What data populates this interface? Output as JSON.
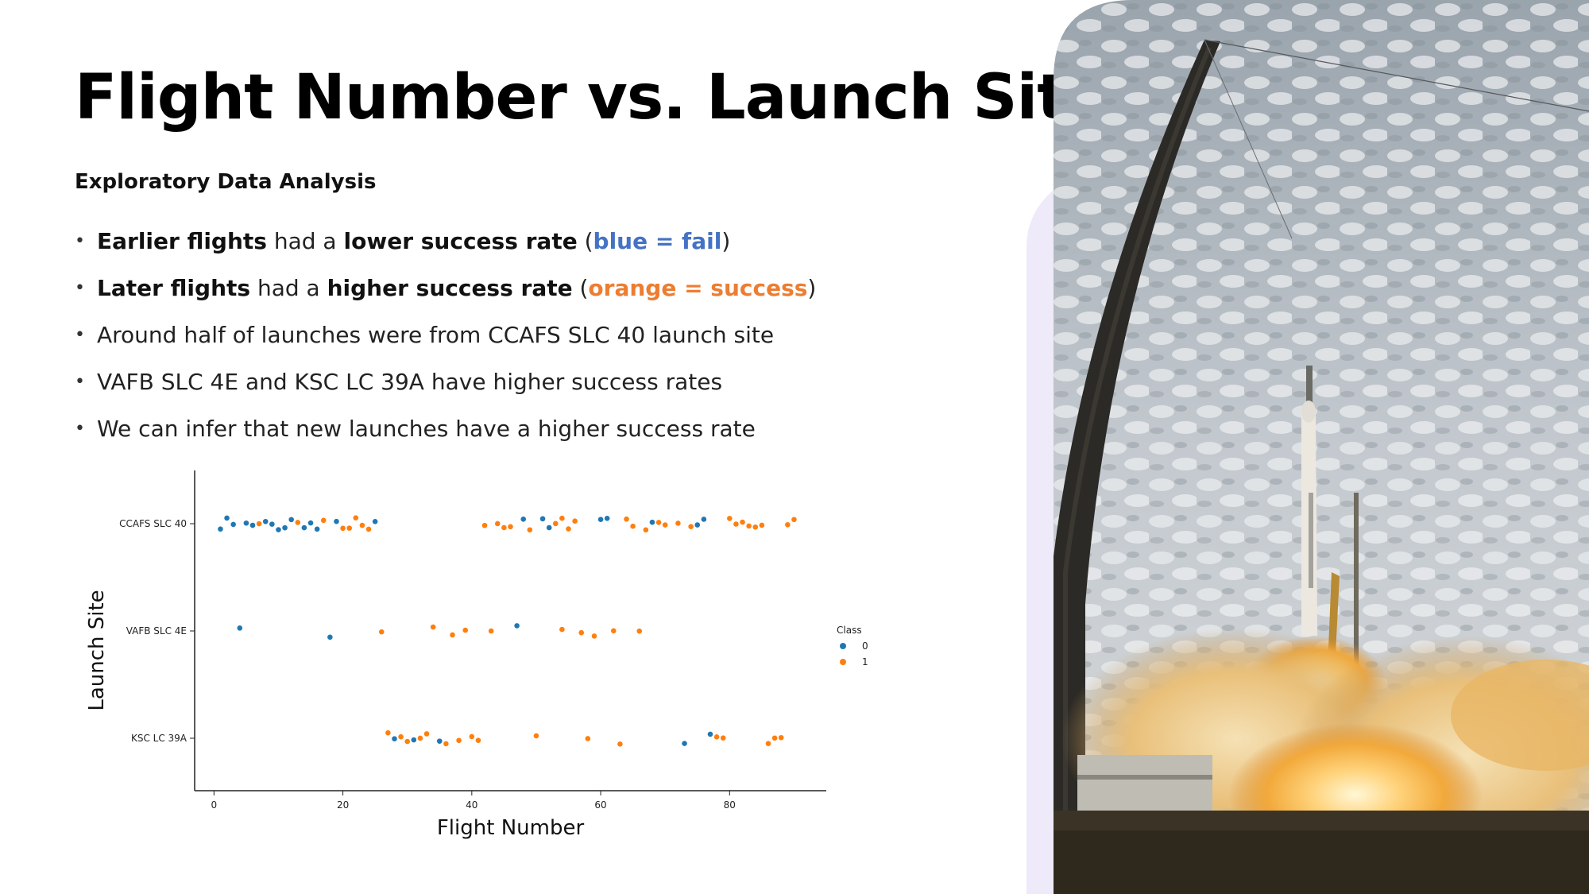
{
  "slide": {
    "title": "Flight Number vs. Launch Site",
    "subtitle": "Exploratory Data Analysis",
    "bullets": [
      {
        "parts": [
          {
            "text": "Earlier flights",
            "style": "b"
          },
          {
            "text": " had a ",
            "style": ""
          },
          {
            "text": "lower success rate",
            "style": "b"
          },
          {
            "text": " (",
            "style": ""
          },
          {
            "text": "blue = fail",
            "style": "blue"
          },
          {
            "text": ")",
            "style": ""
          }
        ]
      },
      {
        "parts": [
          {
            "text": "Later flights",
            "style": "b"
          },
          {
            "text": " had a ",
            "style": ""
          },
          {
            "text": "higher success rate",
            "style": "b"
          },
          {
            "text": " (",
            "style": ""
          },
          {
            "text": "orange = success",
            "style": "orange"
          },
          {
            "text": ")",
            "style": ""
          }
        ]
      },
      {
        "parts": [
          {
            "text": "Around half of launches were from CCAFS SLC 40 launch site",
            "style": ""
          }
        ]
      },
      {
        "parts": [
          {
            "text": "VAFB SLC 4E and KSC LC 39A have higher success rates",
            "style": ""
          }
        ]
      },
      {
        "parts": [
          {
            "text": "We can infer that new launches have a higher success rate",
            "style": ""
          }
        ]
      }
    ],
    "photo_description": "rocket-launch-photo"
  },
  "colors": {
    "fail": "#1f77b4",
    "success": "#ff7f0e",
    "blue_text": "#4472c4",
    "orange_text": "#ed7d31"
  },
  "chart_data": {
    "type": "scatter",
    "title": "",
    "xlabel": "Flight Number",
    "ylabel": "Launch Site",
    "xlim": [
      -3,
      95
    ],
    "x_ticks": [
      0,
      20,
      40,
      60,
      80
    ],
    "categories": [
      "CCAFS SLC 40",
      "VAFB SLC 4E",
      "KSC LC 39A"
    ],
    "legend": {
      "title": "Class",
      "labels": [
        "0",
        "1"
      ],
      "placement": "right"
    },
    "series": [
      {
        "name": "0",
        "points": [
          {
            "x": 1,
            "site": "CCAFS SLC 40"
          },
          {
            "x": 2,
            "site": "CCAFS SLC 40"
          },
          {
            "x": 3,
            "site": "CCAFS SLC 40"
          },
          {
            "x": 5,
            "site": "CCAFS SLC 40"
          },
          {
            "x": 6,
            "site": "CCAFS SLC 40"
          },
          {
            "x": 8,
            "site": "CCAFS SLC 40"
          },
          {
            "x": 9,
            "site": "CCAFS SLC 40"
          },
          {
            "x": 10,
            "site": "CCAFS SLC 40"
          },
          {
            "x": 11,
            "site": "CCAFS SLC 40"
          },
          {
            "x": 12,
            "site": "CCAFS SLC 40"
          },
          {
            "x": 14,
            "site": "CCAFS SLC 40"
          },
          {
            "x": 15,
            "site": "CCAFS SLC 40"
          },
          {
            "x": 16,
            "site": "CCAFS SLC 40"
          },
          {
            "x": 19,
            "site": "CCAFS SLC 40"
          },
          {
            "x": 25,
            "site": "CCAFS SLC 40"
          },
          {
            "x": 48,
            "site": "CCAFS SLC 40"
          },
          {
            "x": 51,
            "site": "CCAFS SLC 40"
          },
          {
            "x": 52,
            "site": "CCAFS SLC 40"
          },
          {
            "x": 60,
            "site": "CCAFS SLC 40"
          },
          {
            "x": 61,
            "site": "CCAFS SLC 40"
          },
          {
            "x": 68,
            "site": "CCAFS SLC 40"
          },
          {
            "x": 75,
            "site": "CCAFS SLC 40"
          },
          {
            "x": 76,
            "site": "CCAFS SLC 40"
          },
          {
            "x": 4,
            "site": "VAFB SLC 4E"
          },
          {
            "x": 18,
            "site": "VAFB SLC 4E"
          },
          {
            "x": 47,
            "site": "VAFB SLC 4E"
          },
          {
            "x": 28,
            "site": "KSC LC 39A"
          },
          {
            "x": 31,
            "site": "KSC LC 39A"
          },
          {
            "x": 35,
            "site": "KSC LC 39A"
          },
          {
            "x": 73,
            "site": "KSC LC 39A"
          },
          {
            "x": 77,
            "site": "KSC LC 39A"
          }
        ]
      },
      {
        "name": "1",
        "points": [
          {
            "x": 7,
            "site": "CCAFS SLC 40"
          },
          {
            "x": 13,
            "site": "CCAFS SLC 40"
          },
          {
            "x": 17,
            "site": "CCAFS SLC 40"
          },
          {
            "x": 20,
            "site": "CCAFS SLC 40"
          },
          {
            "x": 21,
            "site": "CCAFS SLC 40"
          },
          {
            "x": 22,
            "site": "CCAFS SLC 40"
          },
          {
            "x": 23,
            "site": "CCAFS SLC 40"
          },
          {
            "x": 24,
            "site": "CCAFS SLC 40"
          },
          {
            "x": 42,
            "site": "CCAFS SLC 40"
          },
          {
            "x": 44,
            "site": "CCAFS SLC 40"
          },
          {
            "x": 45,
            "site": "CCAFS SLC 40"
          },
          {
            "x": 46,
            "site": "CCAFS SLC 40"
          },
          {
            "x": 49,
            "site": "CCAFS SLC 40"
          },
          {
            "x": 53,
            "site": "CCAFS SLC 40"
          },
          {
            "x": 54,
            "site": "CCAFS SLC 40"
          },
          {
            "x": 55,
            "site": "CCAFS SLC 40"
          },
          {
            "x": 56,
            "site": "CCAFS SLC 40"
          },
          {
            "x": 64,
            "site": "CCAFS SLC 40"
          },
          {
            "x": 65,
            "site": "CCAFS SLC 40"
          },
          {
            "x": 67,
            "site": "CCAFS SLC 40"
          },
          {
            "x": 69,
            "site": "CCAFS SLC 40"
          },
          {
            "x": 70,
            "site": "CCAFS SLC 40"
          },
          {
            "x": 72,
            "site": "CCAFS SLC 40"
          },
          {
            "x": 74,
            "site": "CCAFS SLC 40"
          },
          {
            "x": 80,
            "site": "CCAFS SLC 40"
          },
          {
            "x": 81,
            "site": "CCAFS SLC 40"
          },
          {
            "x": 82,
            "site": "CCAFS SLC 40"
          },
          {
            "x": 83,
            "site": "CCAFS SLC 40"
          },
          {
            "x": 84,
            "site": "CCAFS SLC 40"
          },
          {
            "x": 85,
            "site": "CCAFS SLC 40"
          },
          {
            "x": 89,
            "site": "CCAFS SLC 40"
          },
          {
            "x": 90,
            "site": "CCAFS SLC 40"
          },
          {
            "x": 26,
            "site": "VAFB SLC 4E"
          },
          {
            "x": 34,
            "site": "VAFB SLC 4E"
          },
          {
            "x": 37,
            "site": "VAFB SLC 4E"
          },
          {
            "x": 39,
            "site": "VAFB SLC 4E"
          },
          {
            "x": 43,
            "site": "VAFB SLC 4E"
          },
          {
            "x": 54,
            "site": "VAFB SLC 4E"
          },
          {
            "x": 57,
            "site": "VAFB SLC 4E"
          },
          {
            "x": 59,
            "site": "VAFB SLC 4E"
          },
          {
            "x": 62,
            "site": "VAFB SLC 4E"
          },
          {
            "x": 66,
            "site": "VAFB SLC 4E"
          },
          {
            "x": 27,
            "site": "KSC LC 39A"
          },
          {
            "x": 29,
            "site": "KSC LC 39A"
          },
          {
            "x": 30,
            "site": "KSC LC 39A"
          },
          {
            "x": 32,
            "site": "KSC LC 39A"
          },
          {
            "x": 33,
            "site": "KSC LC 39A"
          },
          {
            "x": 36,
            "site": "KSC LC 39A"
          },
          {
            "x": 38,
            "site": "KSC LC 39A"
          },
          {
            "x": 40,
            "site": "KSC LC 39A"
          },
          {
            "x": 41,
            "site": "KSC LC 39A"
          },
          {
            "x": 50,
            "site": "KSC LC 39A"
          },
          {
            "x": 58,
            "site": "KSC LC 39A"
          },
          {
            "x": 63,
            "site": "KSC LC 39A"
          },
          {
            "x": 78,
            "site": "KSC LC 39A"
          },
          {
            "x": 79,
            "site": "KSC LC 39A"
          },
          {
            "x": 86,
            "site": "KSC LC 39A"
          },
          {
            "x": 87,
            "site": "KSC LC 39A"
          },
          {
            "x": 88,
            "site": "KSC LC 39A"
          }
        ]
      }
    ]
  }
}
